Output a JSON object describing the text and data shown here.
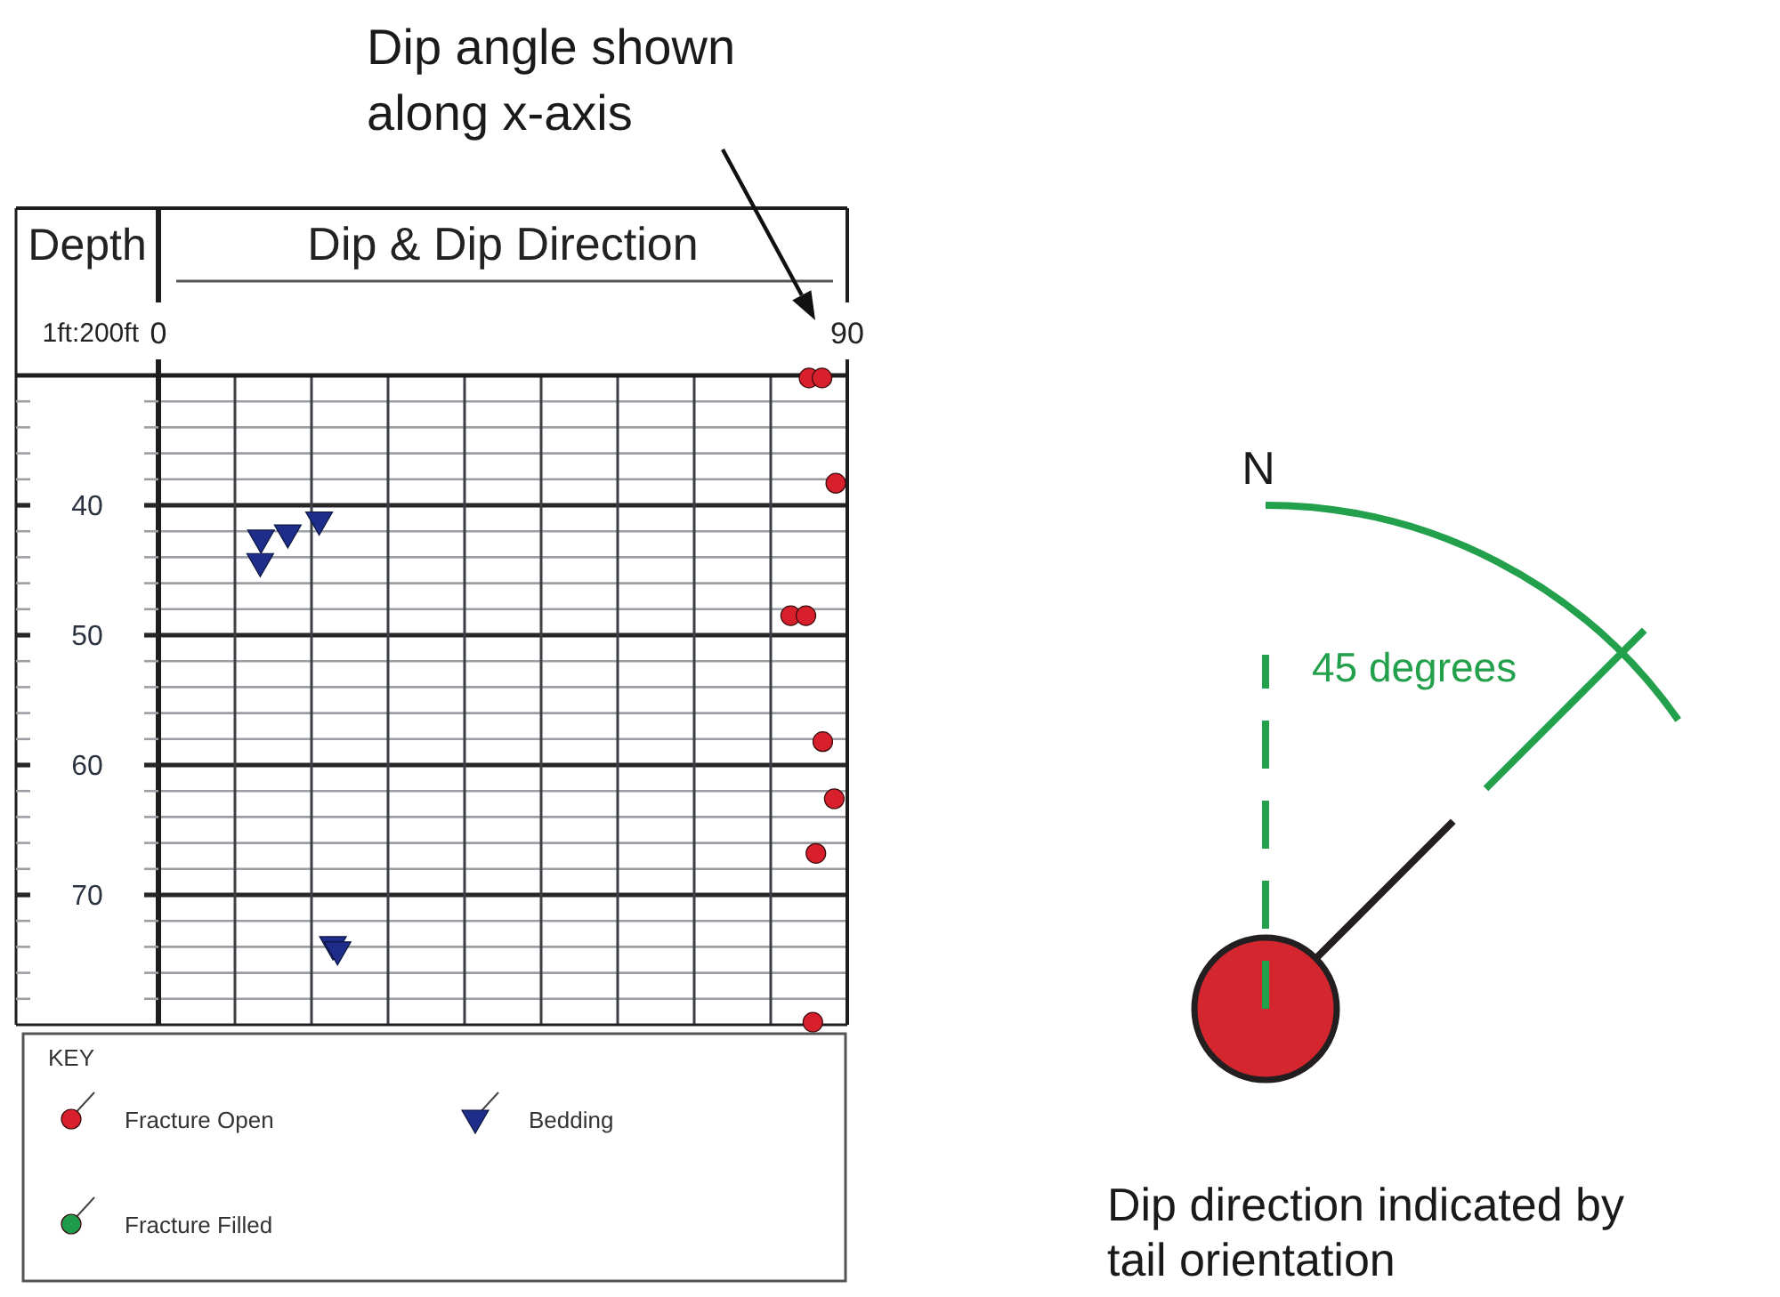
{
  "chart_data": {
    "type": "scatter",
    "xlabel": "Dip & Dip Direction",
    "ylabel": "Depth",
    "legend_title": "KEY",
    "annotations": [
      "Dip angle shown along x-axis",
      "1ft:200ft",
      "N",
      "45 degrees",
      "Dip direction indicated by tail orientation"
    ],
    "xlim": [
      0,
      90
    ],
    "xticks": [
      0,
      {
        "value": 10,
        "label": null
      },
      {
        "value": 20,
        "label": null
      },
      {
        "value": 30,
        "label": null
      },
      {
        "value": 40,
        "label": null
      },
      {
        "value": 50,
        "label": null
      },
      {
        "value": 60,
        "label": null
      },
      {
        "value": 70,
        "label": null
      },
      {
        "value": 80,
        "label": null
      },
      90
    ],
    "ylim": [
      80,
      30
    ],
    "yticks": [
      {
        "value": 32,
        "label": null
      },
      {
        "value": 34,
        "label": null
      },
      {
        "value": 36,
        "label": null
      },
      {
        "value": 38,
        "label": null
      },
      40,
      {
        "value": 42,
        "label": null
      },
      {
        "value": 44,
        "label": null
      },
      {
        "value": 46,
        "label": null
      },
      {
        "value": 48,
        "label": null
      },
      50,
      {
        "value": 52,
        "label": null
      },
      {
        "value": 54,
        "label": null
      },
      {
        "value": 56,
        "label": null
      },
      {
        "value": 58,
        "label": null
      },
      60,
      {
        "value": 62,
        "label": null
      },
      {
        "value": 64,
        "label": null
      },
      {
        "value": 66,
        "label": null
      },
      {
        "value": 68,
        "label": null
      },
      70,
      {
        "value": 72,
        "label": null
      },
      {
        "value": 74,
        "label": null
      },
      {
        "value": 76,
        "label": null
      },
      {
        "value": 78,
        "label": null
      }
    ],
    "grid": true,
    "legend": "bottom",
    "series": [
      {
        "name": "Fracture Open",
        "color": "#d7202c",
        "marker": "circle",
        "x": [
          85,
          86.7,
          88.5,
          82.6,
          84.6,
          86.8,
          88.3,
          85.9,
          85.5
        ],
        "values": [
          30.2,
          30.2,
          38.3,
          48.5,
          48.5,
          58.2,
          62.6,
          66.8,
          79.8
        ]
      },
      {
        "name": "Bedding",
        "color": "#1f2d8a",
        "marker": "triangle",
        "x": [
          13.4,
          13.3,
          16.9,
          21,
          22.8,
          23.4
        ],
        "values": [
          42.6,
          44.4,
          42.2,
          41.2,
          73.9,
          74.3
        ]
      },
      {
        "name": "Fracture Filled",
        "color": "#1f9a4a",
        "marker": "circle"
      }
    ]
  }
}
